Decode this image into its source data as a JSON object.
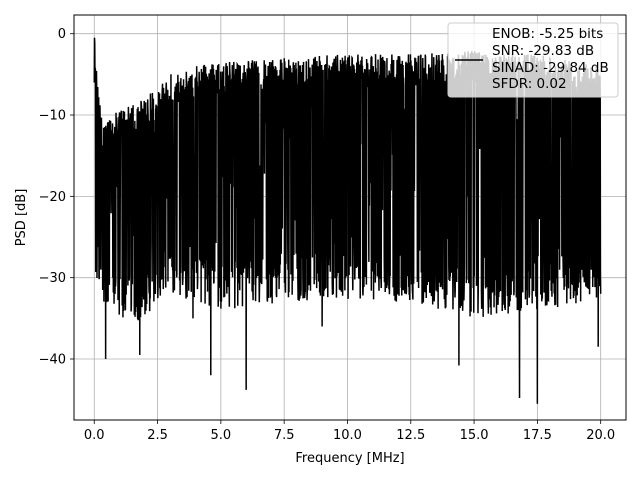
{
  "chart_data": {
    "type": "line",
    "title": "",
    "xlabel": "Frequency [MHz]",
    "ylabel": "PSD [dB]",
    "xlim": [
      -0.8,
      21.0
    ],
    "ylim": [
      -47.5,
      2.3
    ],
    "xticks": [
      0.0,
      2.5,
      5.0,
      7.5,
      10.0,
      12.5,
      15.0,
      17.5,
      20.0
    ],
    "xtick_labels": [
      "0.0",
      "2.5",
      "5.0",
      "7.5",
      "10.0",
      "12.5",
      "15.0",
      "17.5",
      "20.0"
    ],
    "yticks": [
      0,
      -10,
      -20,
      -30,
      -40
    ],
    "ytick_labels": [
      "0",
      "−10",
      "−20",
      "−30",
      "−40"
    ],
    "grid": true,
    "legend_position": "top-right",
    "series": [
      {
        "color": "#000000",
        "legend_lines": [
          "ENOB: -5.25 bits",
          "SNR: -29.83 dB",
          "SINAD: -29.84 dB",
          "SFDR: 0.02"
        ],
        "x_range": [
          0.0,
          20.0
        ],
        "n_points": 2048,
        "envelope": {
          "x": [
            0.0,
            0.05,
            0.3,
            1.0,
            2.0,
            2.5,
            3.0,
            5.0,
            7.5,
            10.0,
            12.5,
            15.0,
            17.5,
            20.0
          ],
          "upper": [
            -0.5,
            -3.0,
            -10.5,
            -9.5,
            -8.0,
            -6.5,
            -4.5,
            -3.5,
            -3.0,
            -2.5,
            -2.5,
            -2.0,
            -2.5,
            -4.0
          ],
          "lower": [
            -10.0,
            -30.0,
            -34.0,
            -36.0,
            -35.0,
            -33.0,
            -32.0,
            -34.0,
            -33.0,
            -33.0,
            -33.0,
            -35.0,
            -34.0,
            -33.0
          ]
        },
        "deep_minima": [
          {
            "x": 0.45,
            "y": -40.0
          },
          {
            "x": 1.8,
            "y": -39.5
          },
          {
            "x": 4.6,
            "y": -42.0
          },
          {
            "x": 6.0,
            "y": -43.8
          },
          {
            "x": 14.4,
            "y": -40.8
          },
          {
            "x": 16.8,
            "y": -44.8
          },
          {
            "x": 17.5,
            "y": -45.5
          },
          {
            "x": 19.9,
            "y": -38.5
          },
          {
            "x": 3.9,
            "y": -35.0
          },
          {
            "x": 9.0,
            "y": -36.0
          }
        ]
      }
    ]
  }
}
